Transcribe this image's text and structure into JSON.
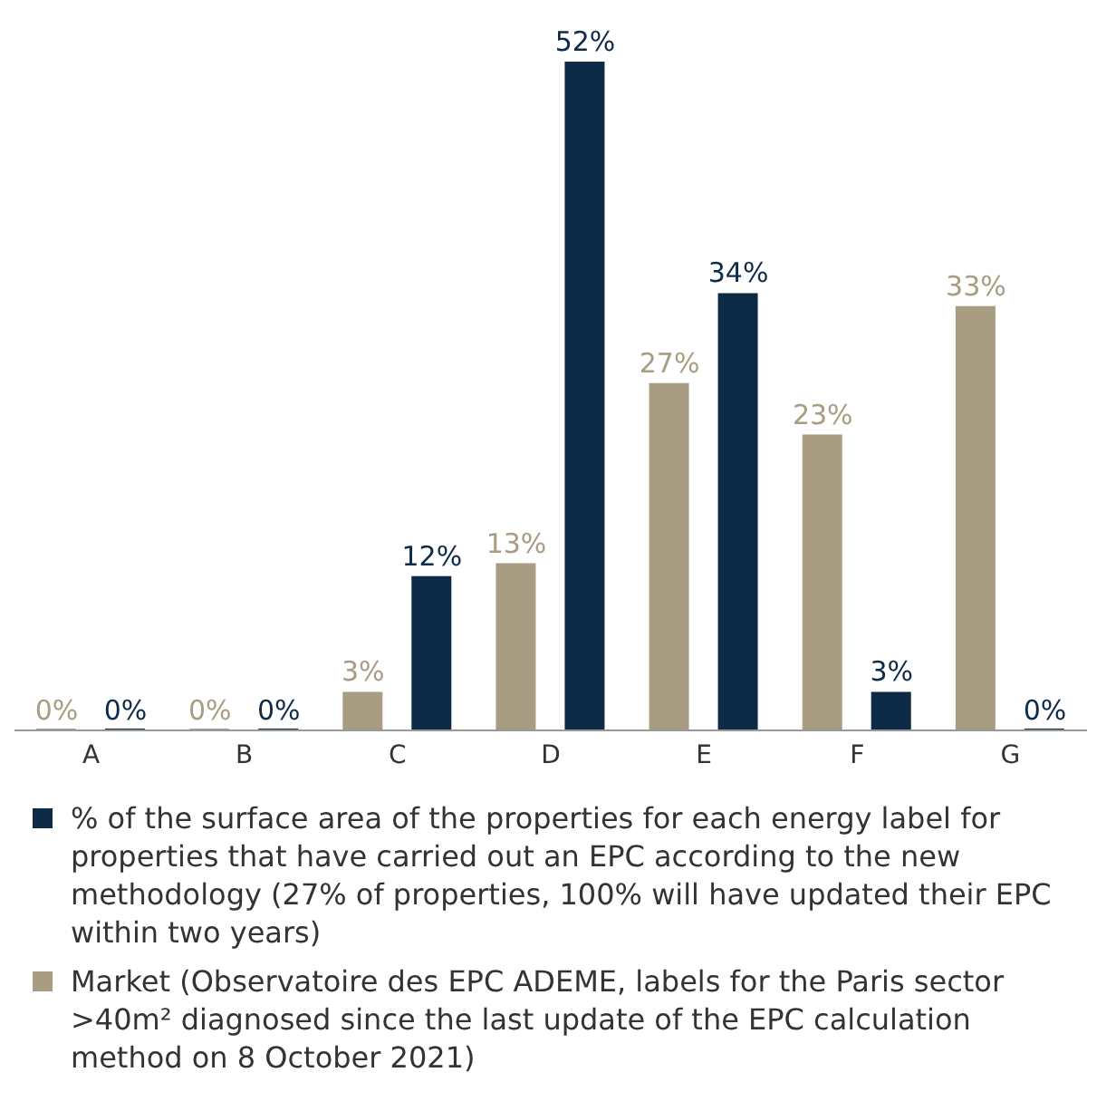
{
  "chart_data": {
    "type": "bar",
    "categories": [
      "A",
      "B",
      "C",
      "D",
      "E",
      "F",
      "G"
    ],
    "series": [
      {
        "name": "% of the surface area of the properties for each energy label for properties that have carried out an EPC according to the new methodology (27% of properties, 100% will have updated their EPC within two years)",
        "color": "#0d2a47",
        "values": [
          0,
          0,
          12,
          52,
          34,
          3,
          0
        ],
        "value_labels": [
          "0%",
          "0%",
          "12%",
          "52%",
          "34%",
          "3%",
          "0%"
        ]
      },
      {
        "name": "Market (Observatoire des EPC ADEME, labels for the Paris sector >40m² diagnosed since the last update of the EPC calculation method on 8 October 2021)",
        "color": "#a89c82",
        "values": [
          0,
          0,
          3,
          13,
          27,
          23,
          33
        ],
        "value_labels": [
          "0%",
          "0%",
          "3%",
          "13%",
          "27%",
          "23%",
          "33%"
        ]
      }
    ],
    "legend": "bottom"
  }
}
